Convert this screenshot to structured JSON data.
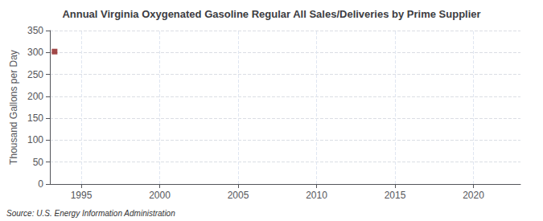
{
  "chart_data": {
    "type": "scatter",
    "title": "Annual Virginia Oxygenated Gasoline Regular All Sales/Deliveries by Prime Supplier",
    "ylabel": "Thousand Gallons per Day",
    "annotation": "Source: U.S. Energy Information Administration",
    "x": [
      1993.3
    ],
    "values": [
      302
    ],
    "color": "#8b1a1a",
    "marker": "square",
    "xlim": [
      1993,
      2023
    ],
    "xticks": [
      1995,
      2000,
      2005,
      2010,
      2015,
      2020
    ],
    "ylim": [
      0,
      350
    ],
    "yticks": [
      0,
      50,
      100,
      150,
      200,
      250,
      300,
      350
    ],
    "grid": true
  }
}
